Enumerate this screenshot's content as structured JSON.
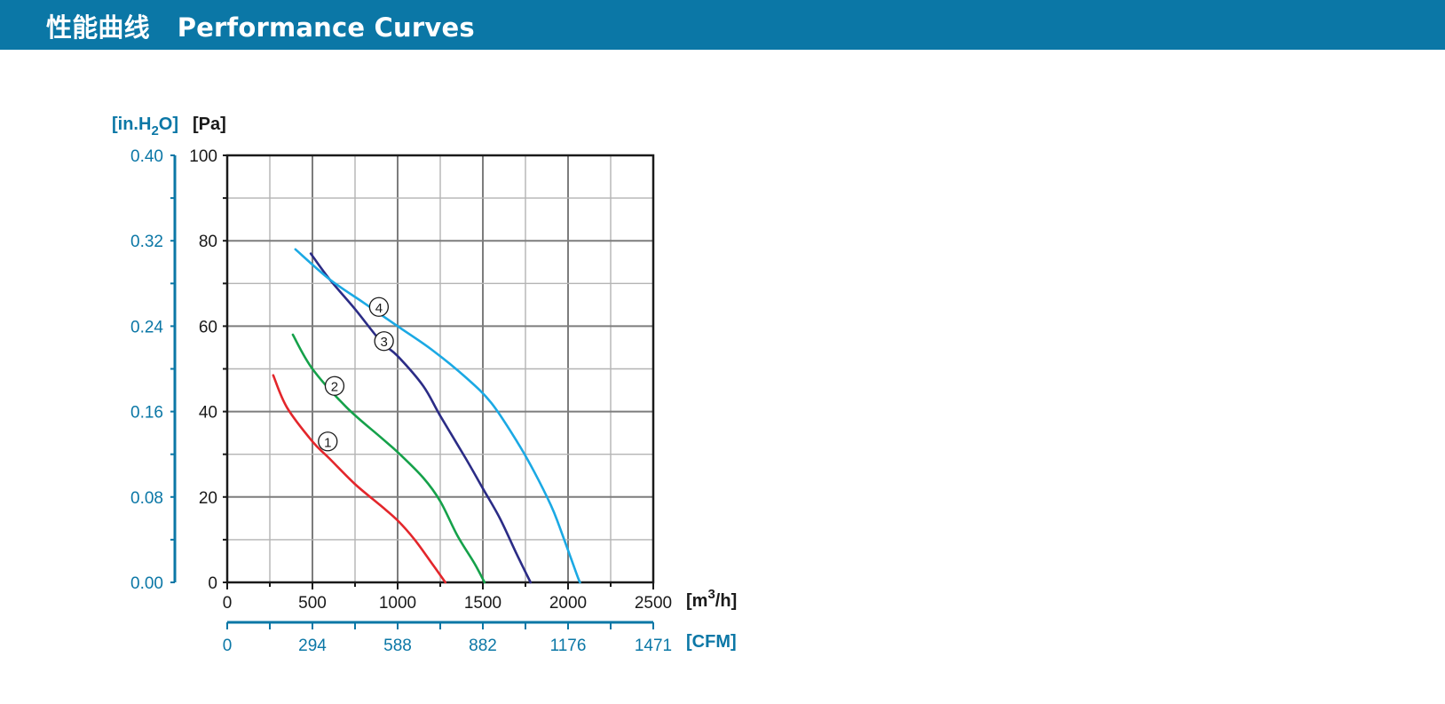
{
  "header": {
    "title_cn": "性能曲线",
    "title_en": "Performance Curves",
    "background_color": "#0b77a6"
  },
  "chart_data": {
    "type": "line",
    "title": "",
    "x_axis": {
      "label": "[m³/h]",
      "label_base": "[m",
      "label_sup": "3",
      "label_tail": "/h]",
      "min": 0,
      "max": 2500,
      "major_step": 500,
      "grid_step": 250,
      "ticks": [
        "0",
        "500",
        "1000",
        "1500",
        "2000",
        "2500"
      ]
    },
    "x_axis_secondary": {
      "label": "[CFM]",
      "ticks": [
        "0",
        "294",
        "588",
        "882",
        "1176",
        "1471"
      ]
    },
    "y_axis": {
      "label": "[Pa]",
      "min": 0,
      "max": 100,
      "major_step": 20,
      "grid_step": 10,
      "ticks": [
        "0",
        "20",
        "40",
        "60",
        "80",
        "100"
      ]
    },
    "y_axis_secondary": {
      "label": "[in.H₂O]",
      "label_base": "[in.H",
      "label_sub": "2",
      "label_tail": "O]",
      "ticks": [
        "0.00",
        "0.08",
        "0.16",
        "0.24",
        "0.32",
        "0.40"
      ]
    },
    "grid": true,
    "legend": "none",
    "colors": {
      "primary_axis": "#1a1a1a",
      "secondary_axis": "#0b77a6",
      "grid_major": "#7d7d7d",
      "grid_minor": "#b4b4b4"
    },
    "series": [
      {
        "marker": "①",
        "color": "#e3262b",
        "points": [
          [
            270,
            48.5
          ],
          [
            350,
            41
          ],
          [
            500,
            33
          ],
          [
            600,
            29
          ],
          [
            750,
            23
          ],
          [
            900,
            18
          ],
          [
            1000,
            14.5
          ],
          [
            1100,
            10
          ],
          [
            1200,
            4.5
          ],
          [
            1280,
            0
          ]
        ],
        "label_at": [
          590,
          33
        ]
      },
      {
        "marker": "②",
        "color": "#15a14a",
        "points": [
          [
            385,
            58
          ],
          [
            500,
            50
          ],
          [
            700,
            41
          ],
          [
            900,
            34
          ],
          [
            1000,
            30.5
          ],
          [
            1150,
            24.5
          ],
          [
            1250,
            19
          ],
          [
            1350,
            11
          ],
          [
            1450,
            4.5
          ],
          [
            1510,
            0
          ]
        ],
        "label_at": [
          630,
          46
        ]
      },
      {
        "marker": "③",
        "color": "#2b2c86",
        "points": [
          [
            490,
            77
          ],
          [
            600,
            71
          ],
          [
            750,
            64
          ],
          [
            900,
            56.5
          ],
          [
            1000,
            53
          ],
          [
            1150,
            46
          ],
          [
            1250,
            39
          ],
          [
            1400,
            29
          ],
          [
            1500,
            22
          ],
          [
            1600,
            15
          ],
          [
            1700,
            6.5
          ],
          [
            1780,
            0
          ]
        ],
        "label_at": [
          920,
          56.5
        ]
      },
      {
        "marker": "④",
        "color": "#1ba9e4",
        "points": [
          [
            400,
            78
          ],
          [
            600,
            71
          ],
          [
            800,
            65.5
          ],
          [
            1000,
            60
          ],
          [
            1200,
            54.5
          ],
          [
            1400,
            48
          ],
          [
            1550,
            42
          ],
          [
            1700,
            33
          ],
          [
            1800,
            26
          ],
          [
            1900,
            18
          ],
          [
            1950,
            13
          ],
          [
            2050,
            2
          ],
          [
            2070,
            0
          ]
        ],
        "label_at": [
          890,
          64.5
        ]
      }
    ]
  }
}
